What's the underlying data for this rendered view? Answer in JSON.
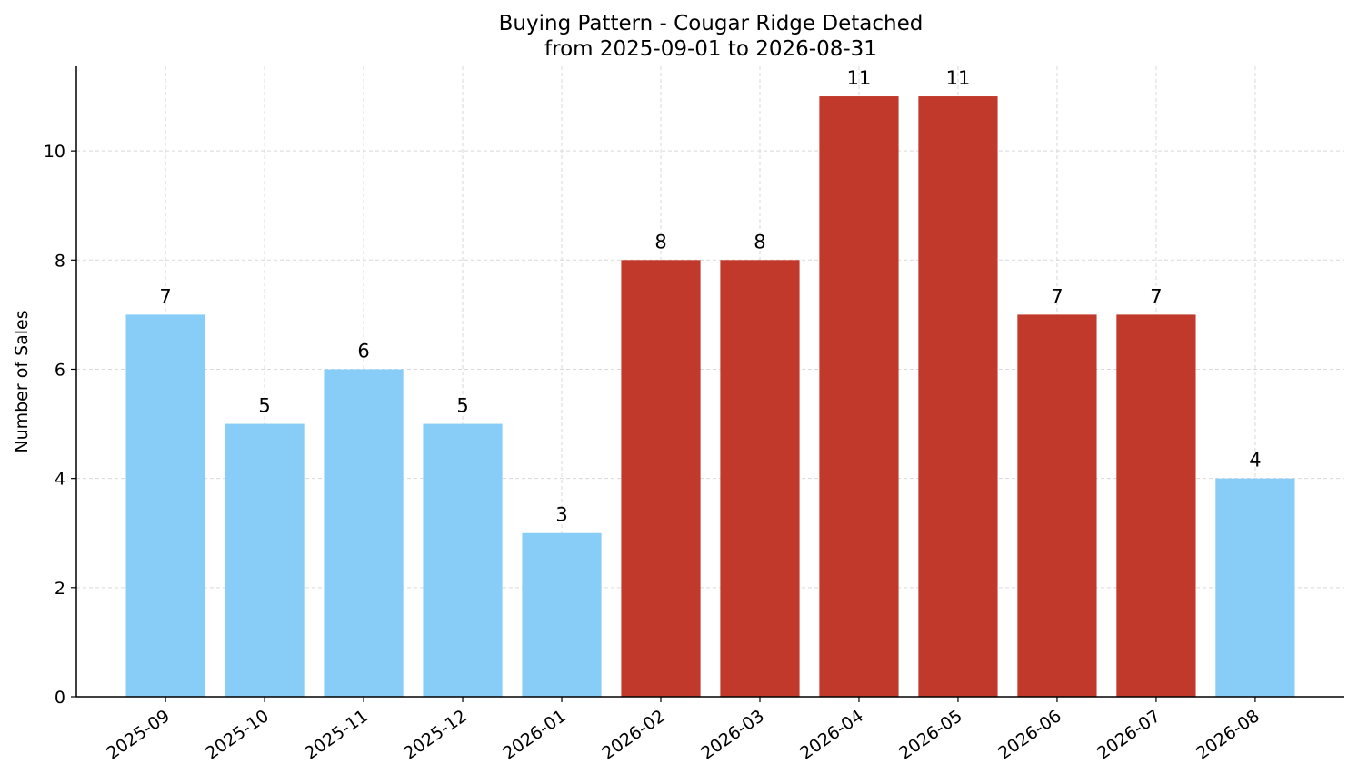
{
  "chart_data": {
    "type": "bar",
    "title": "Buying Pattern - Cougar Ridge Detached",
    "subtitle": "from 2025-09-01 to 2026-08-31",
    "xlabel": "",
    "ylabel": "Number of Sales",
    "categories": [
      "2025-09",
      "2025-10",
      "2025-11",
      "2025-12",
      "2026-01",
      "2026-02",
      "2026-03",
      "2026-04",
      "2026-05",
      "2026-06",
      "2026-07",
      "2026-08"
    ],
    "values": [
      7,
      5,
      6,
      5,
      3,
      8,
      8,
      11,
      11,
      7,
      7,
      4
    ],
    "bar_colors": [
      "#87cdf8",
      "#87cdf8",
      "#87cdf8",
      "#87cdf8",
      "#87cdf8",
      "#c0392b",
      "#c0392b",
      "#c0392b",
      "#c0392b",
      "#c0392b",
      "#c0392b",
      "#87cdf8"
    ],
    "ylim": [
      0,
      11.55
    ],
    "yticks": [
      0,
      2,
      4,
      6,
      8,
      10
    ],
    "grid": true,
    "grid_color": "#d9d9d9",
    "axis_color": "#000000"
  }
}
